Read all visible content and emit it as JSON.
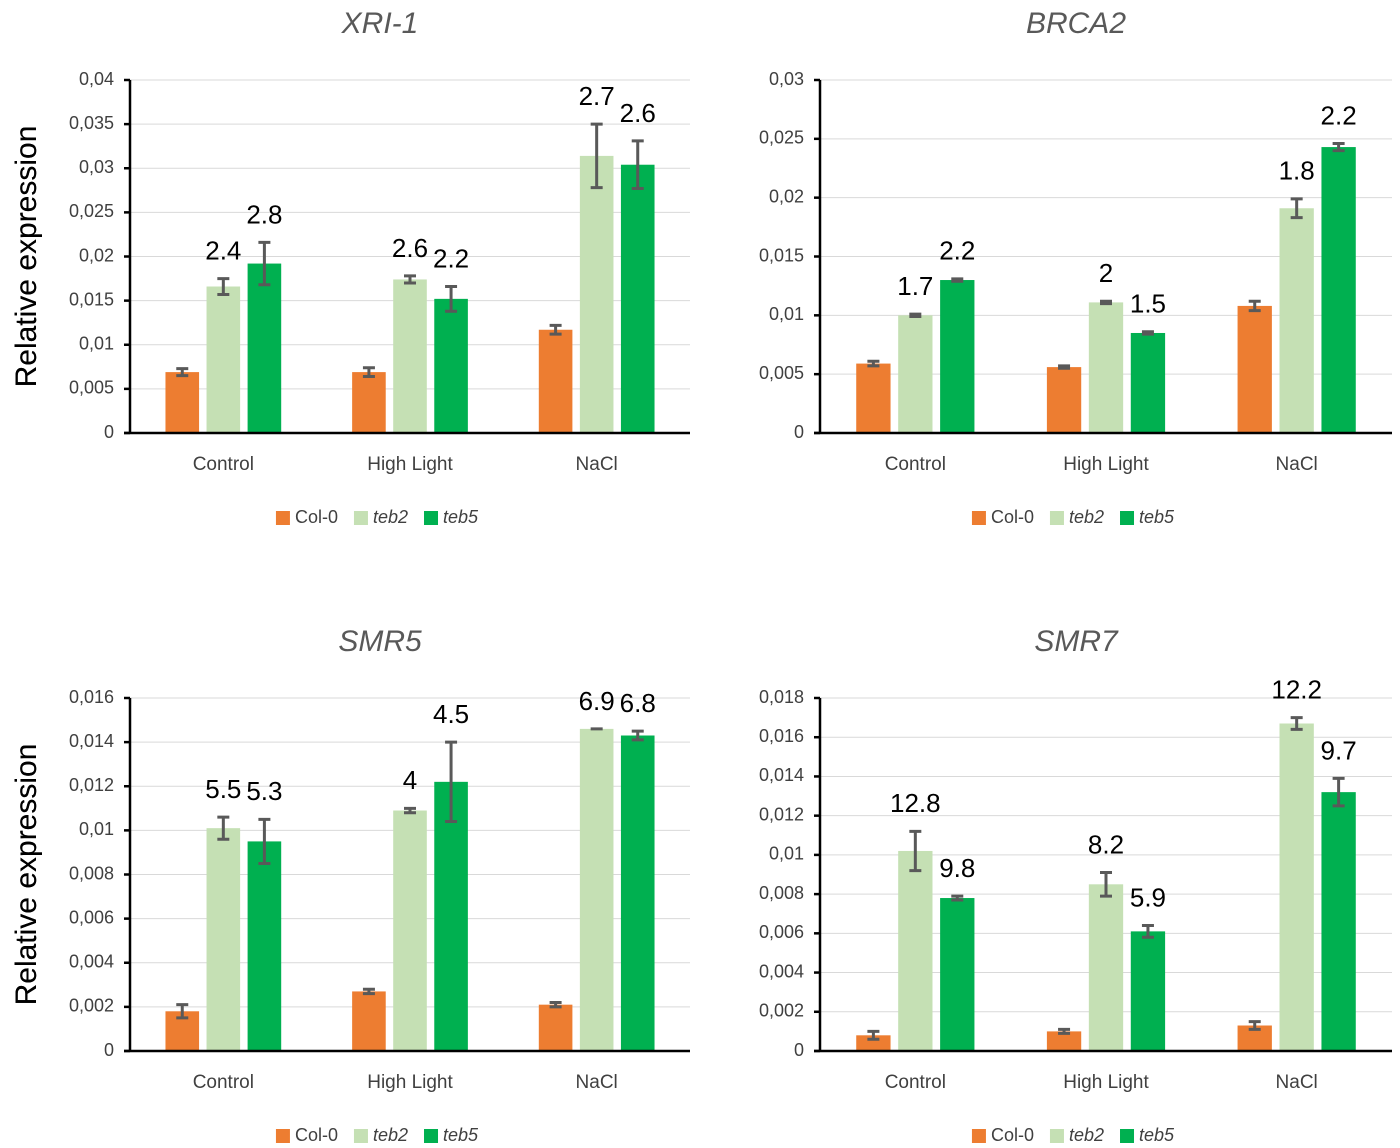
{
  "chart_data": [
    {
      "type": "bar",
      "title": "XRI-1",
      "y_label": "Relative expression",
      "grid": true,
      "categories": [
        "Control",
        "High Light",
        "NaCl"
      ],
      "ylim": [
        0,
        0.04
      ],
      "yticks": [
        0,
        {
          "value": 0.005,
          "label": "0,005"
        },
        {
          "value": 0.01,
          "label": "0,01"
        },
        {
          "value": 0.015,
          "label": "0,015"
        },
        {
          "value": 0.02,
          "label": "0,02"
        },
        {
          "value": 0.025,
          "label": "0,025"
        },
        {
          "value": 0.03,
          "label": "0,03"
        },
        {
          "value": 0.035,
          "label": "0,035"
        },
        {
          "value": 0.04,
          "label": "0,04"
        }
      ],
      "series": [
        {
          "name": "Col-0",
          "color": "#ed7d31",
          "values": [
            0.0069,
            0.0069,
            0.0117
          ],
          "errors": [
            0.0004,
            0.0005,
            0.0005
          ]
        },
        {
          "name": "teb2",
          "color": "#c5e0b4",
          "values": [
            0.0166,
            0.0174,
            0.0314
          ],
          "errors": [
            0.0009,
            0.0004,
            0.0036
          ],
          "labels": [
            "2.4",
            "2.6",
            "2.7"
          ]
        },
        {
          "name": "teb5",
          "color": "#00b050",
          "values": [
            0.0192,
            0.0152,
            0.0304
          ],
          "errors": [
            0.0024,
            0.0014,
            0.0027
          ],
          "labels": [
            "2.8",
            "2.2",
            "2.6"
          ]
        }
      ]
    },
    {
      "type": "bar",
      "title": "BRCA2",
      "y_label": "Relative expression",
      "grid": true,
      "categories": [
        "Control",
        "High Light",
        "NaCl"
      ],
      "ylim": [
        0,
        0.03
      ],
      "yticks": [
        0,
        {
          "value": 0.005,
          "label": "0,005"
        },
        {
          "value": 0.01,
          "label": "0,01"
        },
        {
          "value": 0.015,
          "label": "0,015"
        },
        {
          "value": 0.02,
          "label": "0,02"
        },
        {
          "value": 0.025,
          "label": "0,025"
        },
        {
          "value": 0.03,
          "label": "0,03"
        }
      ],
      "series": [
        {
          "name": "Col-0",
          "color": "#ed7d31",
          "values": [
            0.0059,
            0.0056,
            0.0108
          ],
          "errors": [
            0.0002,
            0.0001,
            0.0004
          ]
        },
        {
          "name": "teb2",
          "color": "#c5e0b4",
          "values": [
            0.01,
            0.0111,
            0.0191
          ],
          "errors": [
            0.0001,
            0.0001,
            0.0008
          ],
          "labels": [
            "1.7",
            "2",
            "1.8"
          ]
        },
        {
          "name": "teb5",
          "color": "#00b050",
          "values": [
            0.013,
            0.0085,
            0.0243
          ],
          "errors": [
            0.0001,
            0.0001,
            0.0003
          ],
          "labels": [
            "2.2",
            "1.5",
            "2.2"
          ]
        }
      ]
    },
    {
      "type": "bar",
      "title": "SMR5",
      "y_label": "Relative expression",
      "grid": true,
      "categories": [
        "Control",
        "High Light",
        "NaCl"
      ],
      "ylim": [
        0,
        0.016
      ],
      "yticks": [
        0,
        {
          "value": 0.002,
          "label": "0,002"
        },
        {
          "value": 0.004,
          "label": "0,004"
        },
        {
          "value": 0.006,
          "label": "0,006"
        },
        {
          "value": 0.008,
          "label": "0,008"
        },
        {
          "value": 0.01,
          "label": "0,01"
        },
        {
          "value": 0.012,
          "label": "0,012"
        },
        {
          "value": 0.014,
          "label": "0,014"
        },
        {
          "value": 0.016,
          "label": "0,016"
        }
      ],
      "series": [
        {
          "name": "Col-0",
          "color": "#ed7d31",
          "values": [
            0.0018,
            0.0027,
            0.0021
          ],
          "errors": [
            0.0003,
            0.0001,
            0.0001
          ]
        },
        {
          "name": "teb2",
          "color": "#c5e0b4",
          "values": [
            0.0101,
            0.0109,
            0.0146
          ],
          "errors": [
            0.0005,
            0.0001,
            0
          ],
          "labels": [
            "5.5",
            "4",
            "6.9"
          ]
        },
        {
          "name": "teb5",
          "color": "#00b050",
          "values": [
            0.0095,
            0.0122,
            0.0143
          ],
          "errors": [
            0.001,
            0.0018,
            0.0002
          ],
          "labels": [
            "5.3",
            "4.5",
            "6.8"
          ]
        }
      ]
    },
    {
      "type": "bar",
      "title": "SMR7",
      "y_label": "Relative expression",
      "grid": true,
      "categories": [
        "Control",
        "High Light",
        "NaCl"
      ],
      "ylim": [
        0,
        0.018
      ],
      "yticks": [
        0,
        {
          "value": 0.002,
          "label": "0,002"
        },
        {
          "value": 0.004,
          "label": "0,004"
        },
        {
          "value": 0.006,
          "label": "0,006"
        },
        {
          "value": 0.008,
          "label": "0,008"
        },
        {
          "value": 0.01,
          "label": "0,01"
        },
        {
          "value": 0.012,
          "label": "0,012"
        },
        {
          "value": 0.014,
          "label": "0,014"
        },
        {
          "value": 0.016,
          "label": "0,016"
        },
        {
          "value": 0.018,
          "label": "0,018"
        }
      ],
      "series": [
        {
          "name": "Col-0",
          "color": "#ed7d31",
          "values": [
            0.0008,
            0.001,
            0.0013
          ],
          "errors": [
            0.0002,
            0.0001,
            0.0002
          ]
        },
        {
          "name": "teb2",
          "color": "#c5e0b4",
          "values": [
            0.0102,
            0.0085,
            0.0167
          ],
          "errors": [
            0.001,
            0.0006,
            0.0003
          ],
          "labels": [
            "12.8",
            "8.2",
            "12.2"
          ]
        },
        {
          "name": "teb5",
          "color": "#00b050",
          "values": [
            0.0078,
            0.0061,
            0.0132
          ],
          "errors": [
            0.0001,
            0.0003,
            0.0007
          ],
          "labels": [
            "9.8",
            "5.9",
            "9.7"
          ]
        }
      ]
    }
  ]
}
